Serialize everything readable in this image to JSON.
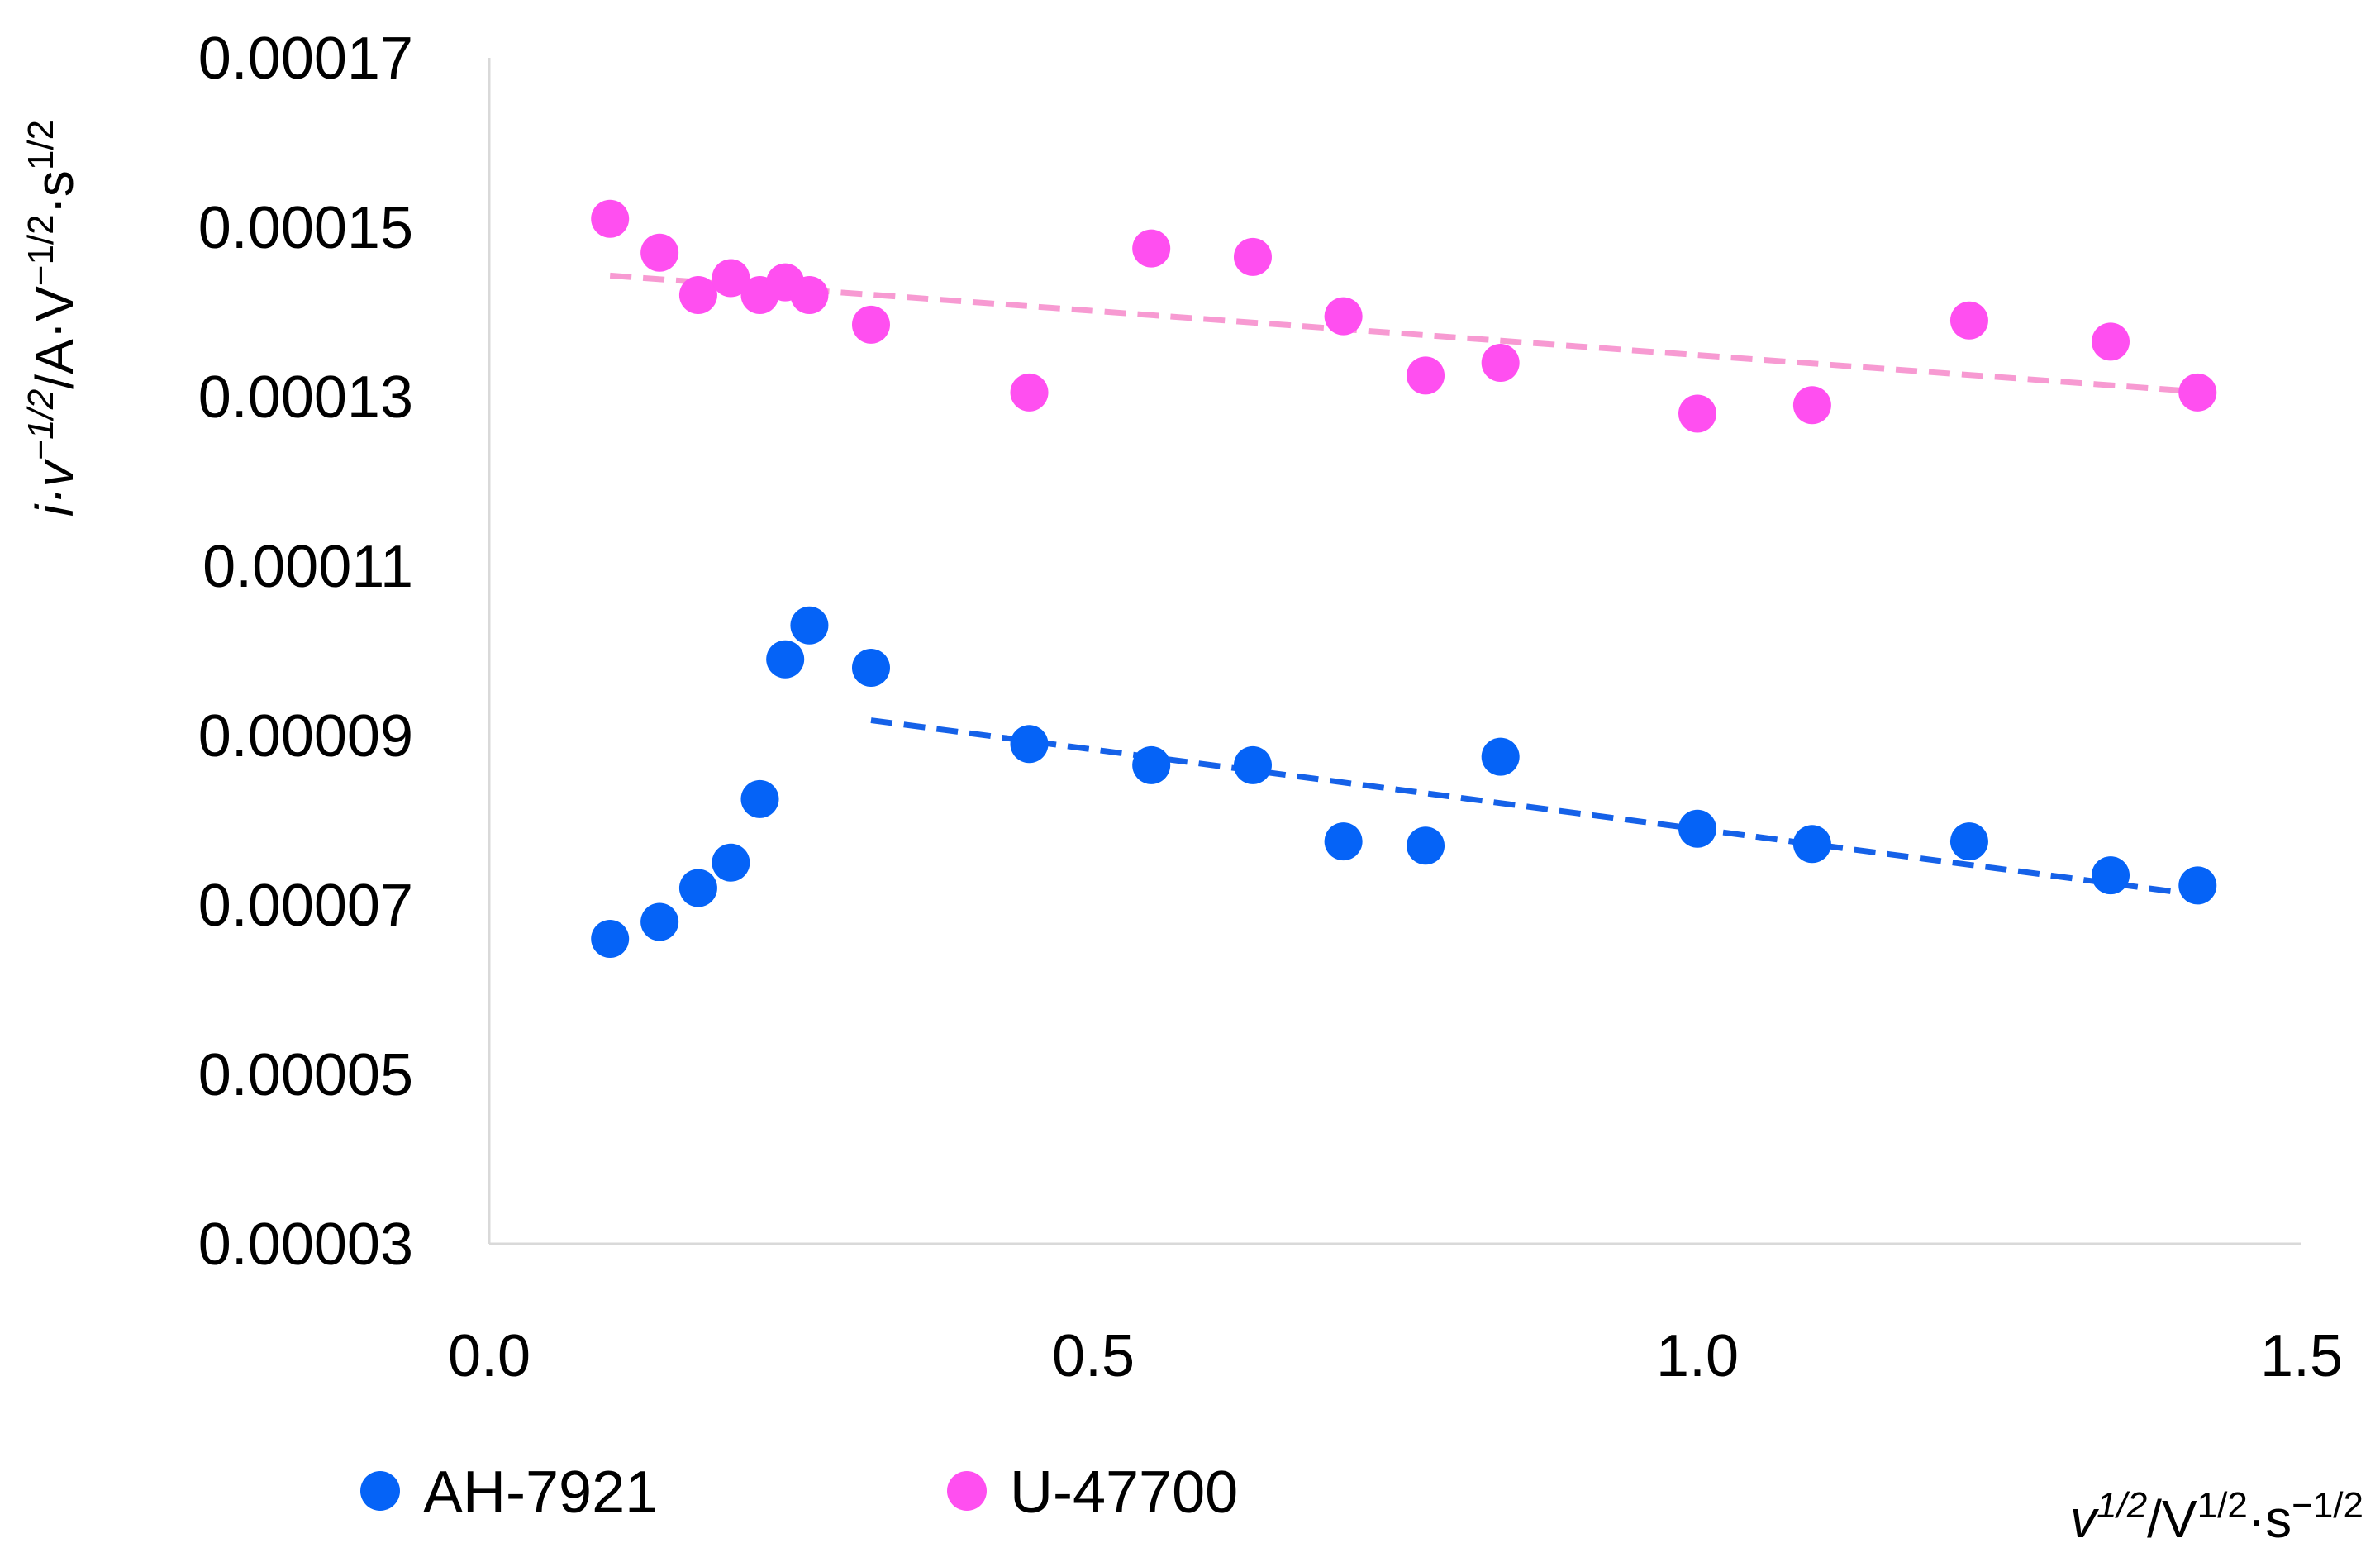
{
  "chart_data": {
    "type": "scatter",
    "title": "",
    "xlabel": {
      "prefix": "v",
      "exp1": "1/2",
      "mid": "/V",
      "exp2": "1/2",
      "dot": "·s",
      "exp3": "−1/2"
    },
    "ylabel": {
      "prefix": "i·v",
      "exp1": "−1/2",
      "mid": "/A·V",
      "exp2": "−1/2",
      "dot": "·s",
      "exp3": "1/2"
    },
    "xlim": [
      0,
      1.5
    ],
    "ylim": [
      3e-05,
      0.00017
    ],
    "x_ticks": [
      0,
      0.5,
      1.0,
      1.5
    ],
    "x_tick_labels": [
      "0.0",
      "0.5",
      "1.0",
      "1.5"
    ],
    "y_ticks": [
      3e-05,
      5e-05,
      7e-05,
      9e-05,
      0.00011,
      0.00013,
      0.00015,
      0.00017
    ],
    "y_tick_labels": [
      "0.00003",
      "0.00005",
      "0.00007",
      "0.00009",
      "0.00011",
      "0.00013",
      "0.00015",
      "0.00017"
    ],
    "grid": false,
    "legend_position": "bottom-left",
    "series": [
      {
        "name": "AH-7921",
        "color": "#0563f7",
        "points": [
          [
            0.1,
            6.6e-05
          ],
          [
            0.141,
            6.8e-05
          ],
          [
            0.173,
            7.2e-05
          ],
          [
            0.2,
            7.5e-05
          ],
          [
            0.224,
            8.25e-05
          ],
          [
            0.245,
            9.9e-05
          ],
          [
            0.265,
            0.000103
          ],
          [
            0.316,
            9.8e-05
          ],
          [
            0.447,
            8.9e-05
          ],
          [
            0.548,
            8.65e-05
          ],
          [
            0.632,
            8.65e-05
          ],
          [
            0.707,
            7.75e-05
          ],
          [
            0.775,
            7.7e-05
          ],
          [
            0.837,
            8.75e-05
          ],
          [
            1.0,
            7.9e-05
          ],
          [
            1.095,
            7.72e-05
          ],
          [
            1.225,
            7.75e-05
          ],
          [
            1.342,
            7.35e-05
          ],
          [
            1.414,
            7.23e-05
          ]
        ],
        "trendline": {
          "x": [
            0.316,
            1.414
          ],
          "y": [
            9.18e-05,
            7.12e-05
          ],
          "color": "#1561e8",
          "style": "dashed"
        }
      },
      {
        "name": "U-47700",
        "color": "#ff4ff0",
        "points": [
          [
            0.1,
            0.000151
          ],
          [
            0.141,
            0.000147
          ],
          [
            0.173,
            0.000142
          ],
          [
            0.2,
            0.000144
          ],
          [
            0.224,
            0.000142
          ],
          [
            0.245,
            0.0001435
          ],
          [
            0.265,
            0.000142
          ],
          [
            0.316,
            0.0001385
          ],
          [
            0.447,
            0.0001305
          ],
          [
            0.548,
            0.0001475
          ],
          [
            0.632,
            0.0001465
          ],
          [
            0.707,
            0.0001395
          ],
          [
            0.775,
            0.0001325
          ],
          [
            0.837,
            0.000134
          ],
          [
            1.0,
            0.000128
          ],
          [
            1.095,
            0.000129
          ],
          [
            1.225,
            0.000139
          ],
          [
            1.342,
            0.0001365
          ],
          [
            1.414,
            0.0001305
          ]
        ],
        "trendline": {
          "x": [
            0.1,
            1.414
          ],
          "y": [
            0.0001443,
            0.0001306
          ],
          "color": "#f79ad2",
          "style": "dashed"
        }
      }
    ]
  }
}
